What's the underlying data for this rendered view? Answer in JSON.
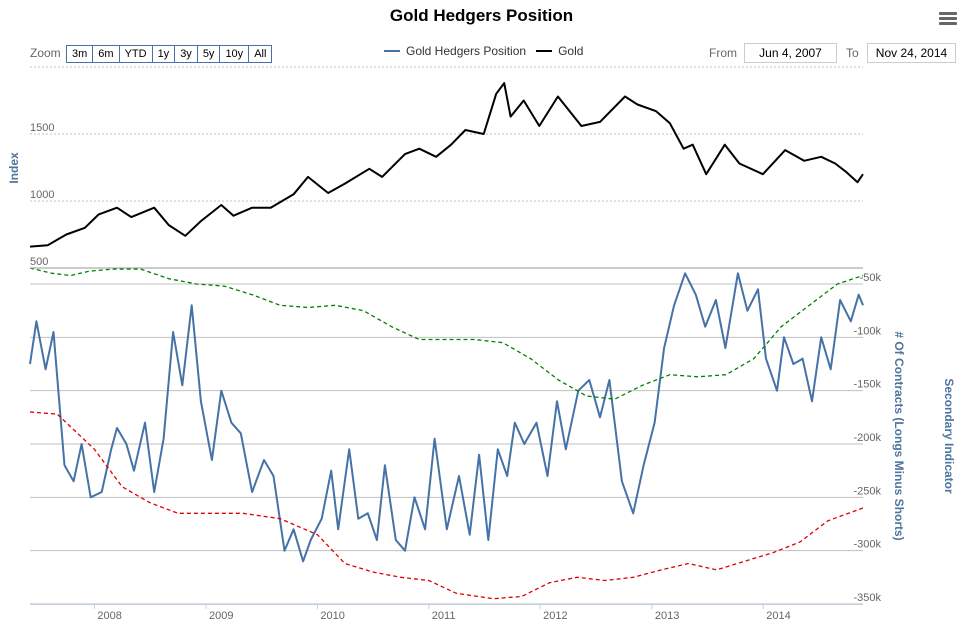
{
  "chart": {
    "title": "Gold Hedgers Position",
    "menu_icon": "hamburger-menu-icon"
  },
  "zoom": {
    "label": "Zoom",
    "buttons": [
      "3m",
      "6m",
      "YTD",
      "1y",
      "3y",
      "5y",
      "10y",
      "All"
    ]
  },
  "range": {
    "from_label": "From",
    "from_value": "Jun 4, 2007",
    "to_label": "To",
    "to_value": "Nov 24, 2014"
  },
  "chart_data": {
    "type": "line",
    "title": "Gold Hedgers Position",
    "legend": {
      "placement": "top-center",
      "items": [
        {
          "name": "Gold Hedgers Position",
          "color": "#4572a7"
        },
        {
          "name": "Gold",
          "color": "#000000"
        }
      ]
    },
    "x_axis": {
      "type": "datetime",
      "range": [
        "2007-06-04",
        "2014-11-24"
      ],
      "ticks": [
        "2008",
        "2009",
        "2010",
        "2011",
        "2012",
        "2013",
        "2014"
      ]
    },
    "top_pane": {
      "ylabel": "Index",
      "ylim": [
        500,
        2000
      ],
      "ticks": [
        500,
        1000,
        1500
      ],
      "gridlines": true
    },
    "bottom_pane": {
      "ylabel": "# Of Contracts (Longs Minus Shorts)",
      "ylabel_secondary": "Secondary Indicator",
      "ylim": [
        -350000,
        -35000
      ],
      "ticks": [
        -50000,
        -100000,
        -150000,
        -200000,
        -250000,
        -300000,
        -350000
      ],
      "tick_labels": [
        "-50k",
        "-100k",
        "-150k",
        "-200k",
        "-250k",
        "-300k",
        "-350k"
      ],
      "gridlines": true
    },
    "series": [
      {
        "name": "Gold",
        "pane": "top",
        "color": "#000000",
        "style": "solid",
        "x": [
          "2007-06-04",
          "2007-08-01",
          "2007-10-01",
          "2007-12-01",
          "2008-01-15",
          "2008-03-15",
          "2008-05-01",
          "2008-07-15",
          "2008-09-01",
          "2008-10-25",
          "2008-12-15",
          "2009-02-20",
          "2009-04-01",
          "2009-06-01",
          "2009-08-01",
          "2009-10-15",
          "2009-12-01",
          "2010-02-05",
          "2010-04-01",
          "2010-06-20",
          "2010-08-01",
          "2010-10-15",
          "2010-12-01",
          "2011-01-25",
          "2011-03-15",
          "2011-05-01",
          "2011-06-30",
          "2011-08-10",
          "2011-09-05",
          "2011-09-26",
          "2011-11-08",
          "2011-12-29",
          "2012-02-28",
          "2012-05-15",
          "2012-07-15",
          "2012-10-05",
          "2012-11-15",
          "2013-01-15",
          "2013-03-01",
          "2013-04-15",
          "2013-05-15",
          "2013-06-28",
          "2013-08-28",
          "2013-10-15",
          "2013-12-31",
          "2014-03-14",
          "2014-05-15",
          "2014-07-10",
          "2014-08-25",
          "2014-10-01",
          "2014-11-06",
          "2014-11-24"
        ],
        "values": [
          660,
          670,
          750,
          800,
          900,
          950,
          880,
          950,
          820,
          740,
          850,
          970,
          890,
          950,
          950,
          1050,
          1180,
          1060,
          1130,
          1240,
          1180,
          1350,
          1390,
          1330,
          1420,
          1530,
          1500,
          1800,
          1880,
          1630,
          1750,
          1560,
          1780,
          1560,
          1590,
          1780,
          1720,
          1670,
          1580,
          1390,
          1420,
          1200,
          1420,
          1280,
          1200,
          1380,
          1300,
          1330,
          1280,
          1215,
          1140,
          1200
        ]
      },
      {
        "name": "Gold Hedgers Position",
        "pane": "bottom",
        "color": "#4572a7",
        "style": "solid",
        "x": [
          "2007-06-04",
          "2007-06-25",
          "2007-07-25",
          "2007-08-20",
          "2007-09-25",
          "2007-10-25",
          "2007-11-20",
          "2007-12-20",
          "2008-01-25",
          "2008-02-25",
          "2008-03-15",
          "2008-04-15",
          "2008-05-10",
          "2008-06-15",
          "2008-07-15",
          "2008-08-15",
          "2008-09-15",
          "2008-10-15",
          "2008-11-15",
          "2008-12-15",
          "2009-01-20",
          "2009-02-20",
          "2009-03-25",
          "2009-04-25",
          "2009-06-01",
          "2009-07-10",
          "2009-08-10",
          "2009-09-15",
          "2009-10-15",
          "2009-11-15",
          "2009-12-10",
          "2010-01-15",
          "2010-02-15",
          "2010-03-10",
          "2010-04-15",
          "2010-05-15",
          "2010-06-15",
          "2010-07-15",
          "2010-08-10",
          "2010-09-15",
          "2010-10-15",
          "2010-11-15",
          "2010-12-20",
          "2011-01-20",
          "2011-03-01",
          "2011-04-10",
          "2011-05-15",
          "2011-06-15",
          "2011-07-15",
          "2011-08-15",
          "2011-09-15",
          "2011-10-10",
          "2011-11-10",
          "2011-12-20",
          "2012-01-25",
          "2012-02-25",
          "2012-03-25",
          "2012-05-05",
          "2012-06-10",
          "2012-07-15",
          "2012-08-15",
          "2012-09-25",
          "2012-11-01",
          "2012-12-05",
          "2013-01-10",
          "2013-02-10",
          "2013-03-15",
          "2013-04-20",
          "2013-05-25",
          "2013-06-25",
          "2013-07-30",
          "2013-08-30",
          "2013-10-10",
          "2013-11-10",
          "2013-12-15",
          "2014-01-10",
          "2014-02-15",
          "2014-03-10",
          "2014-04-10",
          "2014-05-10",
          "2014-06-10",
          "2014-07-10",
          "2014-08-10",
          "2014-09-10",
          "2014-10-15",
          "2014-11-10",
          "2014-11-24"
        ],
        "values": [
          -125000,
          -85000,
          -130000,
          -95000,
          -220000,
          -235000,
          -200000,
          -250000,
          -245000,
          -205000,
          -185000,
          -200000,
          -225000,
          -180000,
          -245000,
          -195000,
          -95000,
          -145000,
          -70000,
          -160000,
          -215000,
          -150000,
          -180000,
          -190000,
          -245000,
          -215000,
          -230000,
          -300000,
          -280000,
          -310000,
          -290000,
          -270000,
          -225000,
          -280000,
          -205000,
          -270000,
          -265000,
          -290000,
          -220000,
          -290000,
          -300000,
          -250000,
          -280000,
          -195000,
          -280000,
          -230000,
          -285000,
          -210000,
          -290000,
          -205000,
          -230000,
          -180000,
          -200000,
          -180000,
          -230000,
          -160000,
          -205000,
          -150000,
          -140000,
          -175000,
          -140000,
          -235000,
          -265000,
          -220000,
          -180000,
          -110000,
          -70000,
          -40000,
          -60000,
          -90000,
          -65000,
          -110000,
          -40000,
          -75000,
          -55000,
          -120000,
          -150000,
          -100000,
          -125000,
          -120000,
          -160000,
          -100000,
          -130000,
          -65000,
          -85000,
          -60000,
          -70000
        ]
      },
      {
        "name": "Secondary Indicator (upper band)",
        "pane": "bottom",
        "color": "#008000",
        "style": "dashed",
        "x": [
          "2007-06-04",
          "2007-08-15",
          "2007-10-15",
          "2007-12-15",
          "2008-03-01",
          "2008-06-01",
          "2008-09-01",
          "2008-12-01",
          "2009-03-01",
          "2009-06-01",
          "2009-09-01",
          "2009-12-01",
          "2010-03-01",
          "2010-06-01",
          "2010-09-01",
          "2010-12-01",
          "2011-03-01",
          "2011-06-01",
          "2011-09-01",
          "2011-12-01",
          "2012-03-01",
          "2012-06-01",
          "2012-09-01",
          "2012-12-01",
          "2013-03-01",
          "2013-06-01",
          "2013-09-01",
          "2013-12-01",
          "2014-03-01",
          "2014-06-01",
          "2014-09-01",
          "2014-11-24"
        ],
        "values": [
          -35000,
          -40000,
          -42000,
          -38000,
          -36000,
          -36000,
          -45000,
          -50000,
          -52000,
          -60000,
          -70000,
          -72000,
          -70000,
          -75000,
          -90000,
          -102000,
          -102000,
          -102000,
          -105000,
          -120000,
          -140000,
          -155000,
          -158000,
          -145000,
          -135000,
          -137000,
          -135000,
          -120000,
          -90000,
          -70000,
          -50000,
          -42000
        ]
      },
      {
        "name": "Secondary Indicator (lower band)",
        "pane": "bottom",
        "color": "#e00000",
        "style": "dashed",
        "x": [
          "2007-06-04",
          "2007-09-01",
          "2008-01-01",
          "2008-04-01",
          "2008-07-01",
          "2008-10-01",
          "2009-01-01",
          "2009-05-01",
          "2009-09-01",
          "2010-01-01",
          "2010-04-01",
          "2010-07-01",
          "2010-10-01",
          "2011-01-01",
          "2011-04-01",
          "2011-08-01",
          "2011-11-01",
          "2012-02-01",
          "2012-05-01",
          "2012-08-01",
          "2012-11-01",
          "2013-02-01",
          "2013-05-01",
          "2013-08-01",
          "2013-11-01",
          "2014-02-01",
          "2014-05-01",
          "2014-08-01",
          "2014-11-24"
        ],
        "values": [
          -170000,
          -172000,
          -205000,
          -240000,
          -255000,
          -265000,
          -265000,
          -265000,
          -270000,
          -285000,
          -312000,
          -320000,
          -325000,
          -328000,
          -340000,
          -345000,
          -343000,
          -330000,
          -325000,
          -328000,
          -325000,
          -318000,
          -312000,
          -318000,
          -310000,
          -302000,
          -292000,
          -272000,
          -260000
        ]
      }
    ]
  }
}
